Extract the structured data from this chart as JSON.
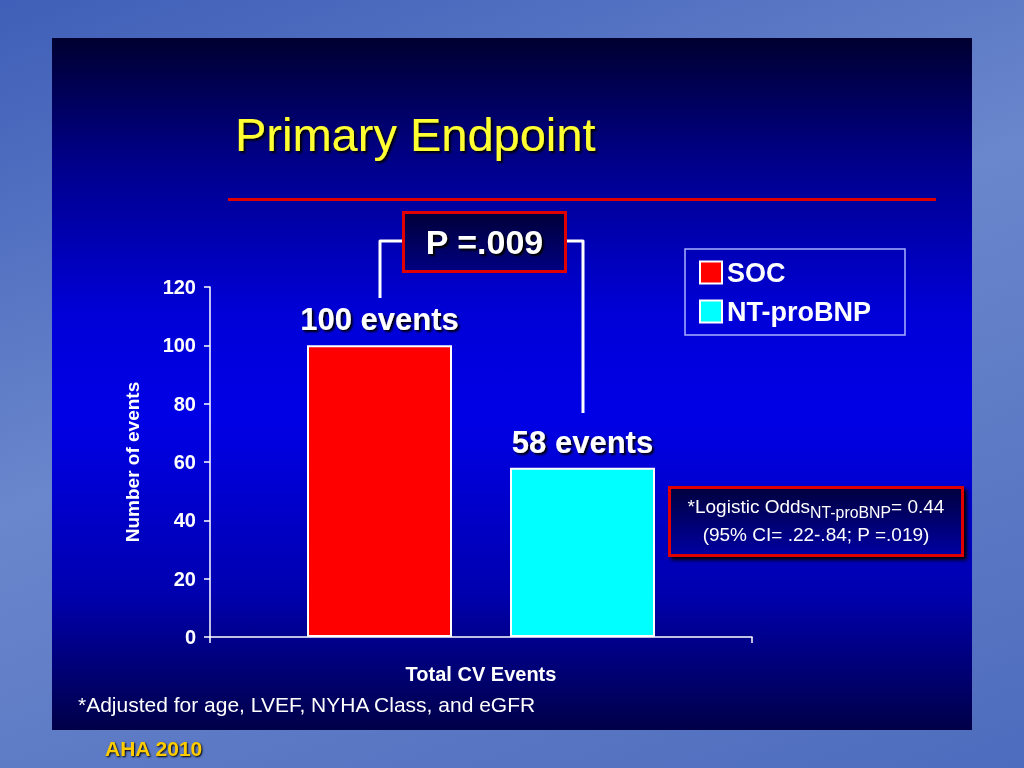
{
  "chart_data": {
    "type": "bar",
    "title": "Primary Endpoint",
    "ylabel": "Number of events",
    "categories": [
      "Total CV Events"
    ],
    "series": [
      {
        "name": "SOC",
        "color": "#ff0000",
        "values": [
          100
        ],
        "value_labels": [
          "100 events"
        ]
      },
      {
        "name": "NT-proBNP",
        "color": "#00ffff",
        "values": [
          58
        ],
        "value_labels": [
          "58 events"
        ]
      }
    ],
    "ylim": [
      0,
      120
    ],
    "yticks": [
      0,
      20,
      40,
      60,
      80,
      100,
      120
    ],
    "legend": "top right",
    "annotations": [
      "P =.009",
      "*Logistic Odds$_{NT-proBNP}$= 0.44 (95% CI= .22-.84; P =.019)",
      "*Adjusted for age, LVEF, NYHA Class, and eGFR",
      "AHA 2010"
    ]
  }
}
